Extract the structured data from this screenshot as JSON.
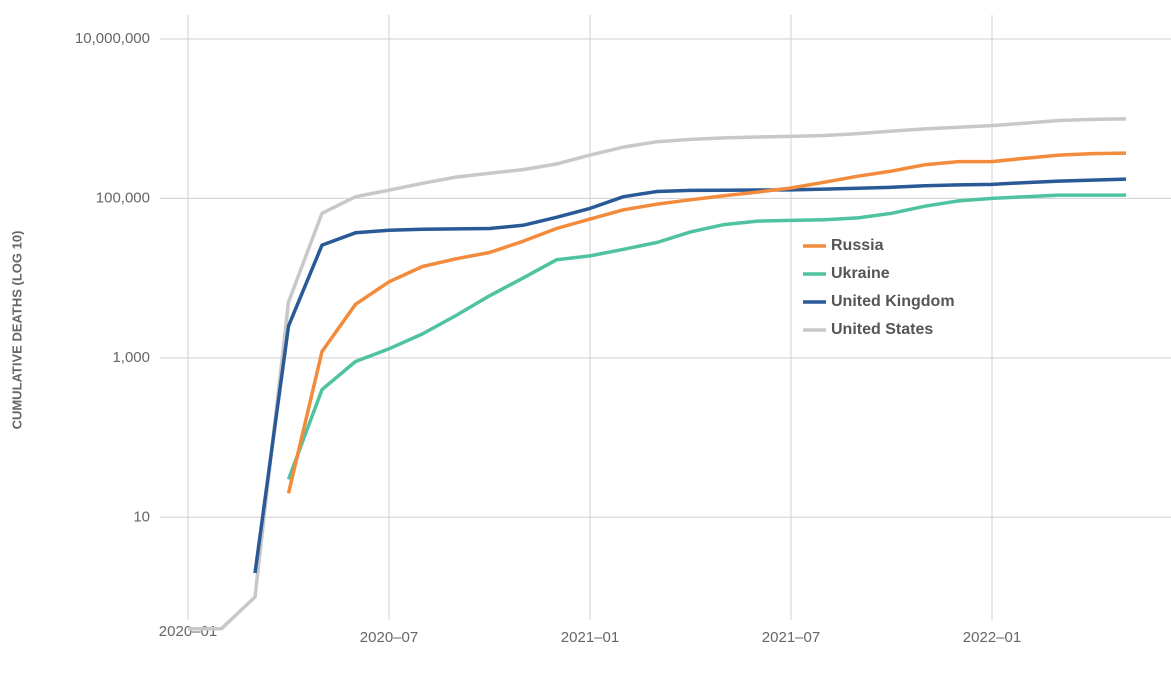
{
  "chart_data": {
    "type": "line",
    "y_label": "CUMULATIVE DEATHS (LOG 10)",
    "log_y": true,
    "grid": true,
    "legend": "center-right",
    "x": [
      "2020-01",
      "2020-02",
      "2020-03",
      "2020-04",
      "2020-05",
      "2020-06",
      "2020-07",
      "2020-08",
      "2020-09",
      "2020-10",
      "2020-11",
      "2020-12",
      "2021-01",
      "2021-02",
      "2021-03",
      "2021-04",
      "2021-05",
      "2021-06",
      "2021-07",
      "2021-08",
      "2021-09",
      "2021-10",
      "2021-11",
      "2021-12",
      "2022-01",
      "2022-02",
      "2022-03",
      "2022-04",
      "2022-05"
    ],
    "xlim": [
      "2019-12",
      "2022-06"
    ],
    "xticks": [
      {
        "value": "2020-01",
        "label": "2020–01"
      },
      {
        "value": "2020-07",
        "label": "2020–07"
      },
      {
        "value": "2021-01",
        "label": "2021–01"
      },
      {
        "value": "2021-07",
        "label": "2021–07"
      },
      {
        "value": "2022-01",
        "label": "2022–01"
      }
    ],
    "ylim": [
      0.25,
      20000000
    ],
    "yticks": [
      10,
      {
        "value": 1000,
        "label": "1,000"
      },
      {
        "value": 100000,
        "label": "100,000"
      },
      {
        "value": 10000000,
        "label": "10,000,000"
      }
    ],
    "series": [
      {
        "name": "Russia",
        "color": "#f28c3c",
        "values": [
          null,
          null,
          null,
          20,
          1200,
          4700,
          9000,
          14000,
          17500,
          21000,
          29000,
          42000,
          55000,
          72000,
          85000,
          96000,
          108000,
          120000,
          135000,
          160000,
          190000,
          220000,
          265000,
          290000,
          290000,
          320000,
          350000,
          365000,
          370000
        ]
      },
      {
        "name": "Ukraine",
        "color": "#4fc3a1",
        "values": [
          null,
          null,
          null,
          30,
          400,
          900,
          1300,
          2000,
          3400,
          6000,
          10000,
          17000,
          19000,
          23000,
          28000,
          38000,
          47000,
          52000,
          53000,
          54000,
          57000,
          65000,
          80000,
          93000,
          100000,
          105000,
          110000,
          110000,
          110000
        ]
      },
      {
        "name": "United Kingdom",
        "color": "#2a5a96",
        "values": [
          null,
          null,
          2,
          2500,
          26000,
          37000,
          40000,
          41000,
          41500,
          42000,
          46000,
          58000,
          75000,
          105000,
          122000,
          126000,
          127000,
          127500,
          128000,
          131000,
          134000,
          138000,
          144000,
          148000,
          150000,
          158000,
          165000,
          170000,
          175000
        ]
      },
      {
        "name": "United States",
        "color": "#c8c8c8",
        "values": [
          0.4,
          0.4,
          1,
          5000,
          65000,
          105000,
          127000,
          155000,
          185000,
          207000,
          230000,
          270000,
          350000,
          440000,
          515000,
          550000,
          575000,
          590000,
          600000,
          615000,
          650000,
          700000,
          745000,
          780000,
          820000,
          880000,
          950000,
          980000,
          995000
        ]
      }
    ]
  }
}
